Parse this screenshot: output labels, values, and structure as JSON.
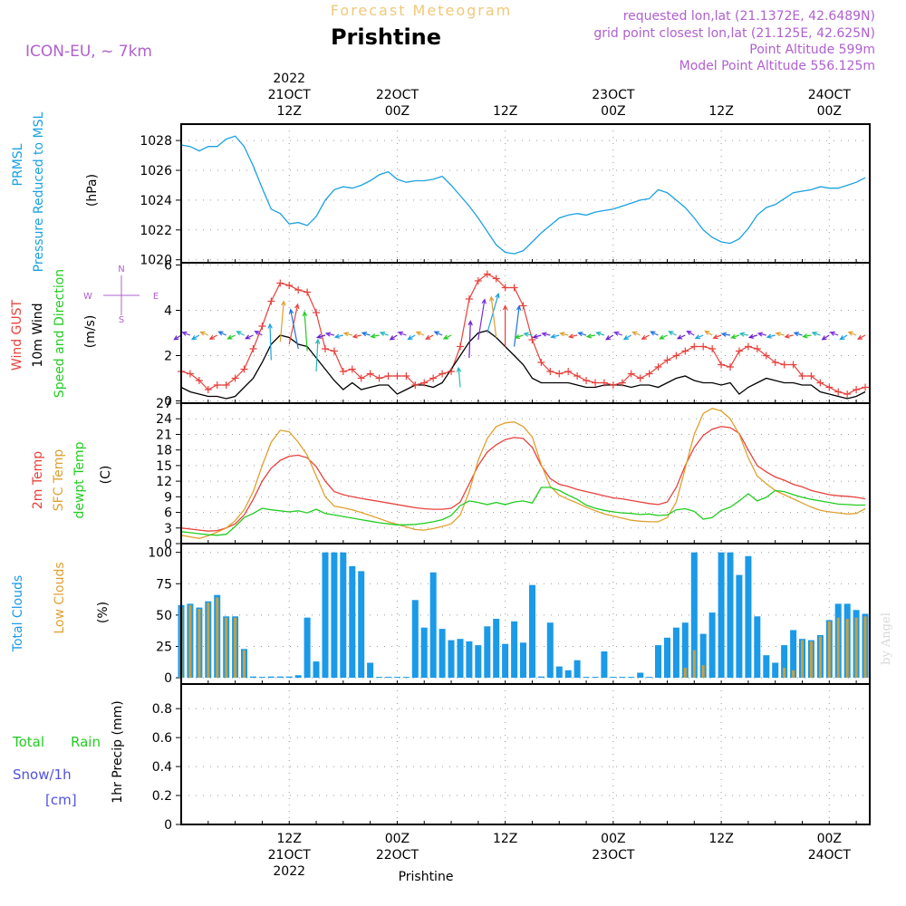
{
  "header": {
    "model": "ICON-EU, ~ 7km",
    "product": "Forecast Meteogram",
    "location": "Prishtine",
    "requested": "requested lon,lat (21.1372E, 42.6489N)",
    "grid_point": "grid point closest lon,lat (21.125E, 42.625N)",
    "point_altitude": "Point Altitude 599m",
    "model_altitude": "Model Point Altitude 556.125m",
    "footer_location": "Prishtine",
    "watermark": "by Angel"
  },
  "time_axis": {
    "top_ticks": [
      {
        "t": 12,
        "lines": [
          "2022",
          "21OCT",
          "12Z"
        ]
      },
      {
        "t": 24,
        "lines": [
          "22OCT",
          "00Z"
        ]
      },
      {
        "t": 36,
        "lines": [
          "12Z"
        ]
      },
      {
        "t": 48,
        "lines": [
          "23OCT",
          "00Z"
        ]
      },
      {
        "t": 60,
        "lines": [
          "12Z"
        ]
      },
      {
        "t": 72,
        "lines": [
          "24OCT",
          "00Z"
        ]
      }
    ],
    "bottom_ticks": [
      {
        "t": 12,
        "lines": [
          "12Z",
          "21OCT",
          "2022"
        ]
      },
      {
        "t": 24,
        "lines": [
          "00Z",
          "22OCT"
        ]
      },
      {
        "t": 36,
        "lines": [
          "12Z"
        ]
      },
      {
        "t": 48,
        "lines": [
          "00Z",
          "23OCT"
        ]
      },
      {
        "t": 60,
        "lines": [
          "12Z"
        ]
      },
      {
        "t": 72,
        "lines": [
          "00Z",
          "24OCT"
        ]
      }
    ],
    "range_hours": [
      0,
      76.5
    ]
  },
  "panel_labels": {
    "pressure": {
      "a": "PRMSL",
      "b": "Pressure Reduced to MSL",
      "unit": "(hPa)"
    },
    "wind": {
      "a": "Wind GUST",
      "b": "10m Wind",
      "c": "Speed and Direction",
      "unit": "(m/s)",
      "compass_n": "N",
      "compass_s": "S",
      "compass_w": "W",
      "compass_e": "E"
    },
    "temp": {
      "a": "2m Temp",
      "b": "SFC Temp",
      "c": "dewpt Temp",
      "unit": "(C)"
    },
    "clouds": {
      "a": "Total Clouds",
      "b": "Low Clouds",
      "unit": "(%)"
    },
    "precip": {
      "a": "Total",
      "a2": "Rain",
      "b": "Snow/1h",
      "c": "[cm]",
      "unit": "1hr Precip (mm)"
    }
  },
  "colors": {
    "pressure": "#1ba1e2",
    "gust": "#e8413c",
    "wind": "#000000",
    "temp2m": "#e8413c",
    "sfc": "#e0a030",
    "dewpt": "#22cc22",
    "total_cloud": "#1a9ae8",
    "low_cloud": "#c8a040",
    "label_purple": "#b060d0",
    "label_blue": "#5050e0"
  },
  "chart_data": [
    {
      "type": "line",
      "name": "pressure",
      "ylabel": "Pressure Reduced to MSL (hPa)",
      "yticks": [
        1020,
        1022,
        1024,
        1026,
        1028
      ],
      "ylim": [
        1019.8,
        1029.1
      ],
      "x": [
        0,
        1,
        2,
        3,
        4,
        5,
        6,
        7,
        8,
        9,
        10,
        11,
        12,
        13,
        14,
        15,
        16,
        17,
        18,
        19,
        20,
        21,
        22,
        23,
        24,
        25,
        26,
        27,
        28,
        29,
        30,
        31,
        32,
        33,
        34,
        35,
        36,
        37,
        38,
        39,
        40,
        41,
        42,
        43,
        44,
        45,
        46,
        47,
        48,
        49,
        50,
        51,
        52,
        53,
        54,
        55,
        56,
        57,
        58,
        59,
        60,
        61,
        62,
        63,
        64,
        65,
        66,
        67,
        68,
        69,
        70,
        71,
        72,
        73,
        74,
        75,
        76
      ],
      "y": [
        1027.7,
        1027.6,
        1027.3,
        1027.6,
        1027.6,
        1028.1,
        1028.3,
        1027.6,
        1026.3,
        1024.8,
        1023.4,
        1023.1,
        1022.4,
        1022.5,
        1022.3,
        1022.9,
        1024.0,
        1024.7,
        1024.9,
        1024.8,
        1025.0,
        1025.3,
        1025.7,
        1025.9,
        1025.4,
        1025.2,
        1025.3,
        1025.3,
        1025.4,
        1025.6,
        1025.0,
        1024.3,
        1023.6,
        1022.8,
        1021.9,
        1021.0,
        1020.5,
        1020.4,
        1020.6,
        1021.2,
        1021.8,
        1022.3,
        1022.8,
        1023.0,
        1023.1,
        1023.0,
        1023.2,
        1023.3,
        1023.4,
        1023.6,
        1023.8,
        1024.0,
        1024.1,
        1024.7,
        1024.5,
        1024.0,
        1023.5,
        1022.8,
        1022.0,
        1021.5,
        1021.2,
        1021.1,
        1021.4,
        1022.1,
        1023.0,
        1023.5,
        1023.7,
        1024.1,
        1024.5,
        1024.6,
        1024.7,
        1024.9,
        1024.8,
        1024.8,
        1025.0,
        1025.2,
        1025.5
      ]
    },
    {
      "type": "line",
      "name": "wind",
      "ylabel": "(m/s)",
      "yticks": [
        0,
        2,
        4,
        6
      ],
      "ylim": [
        -0.1,
        6.1
      ],
      "x": [
        0,
        1,
        2,
        3,
        4,
        5,
        6,
        7,
        8,
        9,
        10,
        11,
        12,
        13,
        14,
        15,
        16,
        17,
        18,
        19,
        20,
        21,
        22,
        23,
        24,
        25,
        26,
        27,
        28,
        29,
        30,
        31,
        32,
        33,
        34,
        35,
        36,
        37,
        38,
        39,
        40,
        41,
        42,
        43,
        44,
        45,
        46,
        47,
        48,
        49,
        50,
        51,
        52,
        53,
        54,
        55,
        56,
        57,
        58,
        59,
        60,
        61,
        62,
        63,
        64,
        65,
        66,
        67,
        68,
        69,
        70,
        71,
        72,
        73,
        74,
        75,
        76
      ],
      "series": [
        {
          "name": "Wind GUST",
          "values": [
            1.3,
            1.2,
            0.9,
            0.5,
            0.7,
            0.7,
            1.0,
            1.4,
            2.3,
            3.3,
            4.4,
            5.2,
            5.1,
            4.9,
            4.8,
            3.9,
            2.3,
            2.2,
            1.3,
            1.4,
            1.0,
            1.2,
            1.0,
            1.1,
            1.1,
            1.1,
            0.7,
            0.8,
            1.0,
            1.2,
            1.3,
            2.4,
            4.5,
            5.3,
            5.6,
            5.4,
            5.0,
            5.0,
            4.2,
            2.7,
            1.7,
            1.3,
            1.2,
            1.3,
            1.1,
            0.9,
            0.8,
            0.8,
            0.7,
            0.8,
            1.2,
            1.0,
            1.2,
            1.5,
            1.8,
            2.0,
            2.2,
            2.4,
            2.4,
            2.3,
            1.6,
            1.5,
            2.2,
            2.4,
            2.3,
            2.0,
            1.7,
            1.6,
            1.6,
            1.1,
            1.1,
            0.8,
            0.6,
            0.4,
            0.3,
            0.5,
            0.6
          ]
        },
        {
          "name": "10m Wind",
          "values": [
            0.6,
            0.4,
            0.3,
            0.2,
            0.2,
            0.1,
            0.2,
            0.6,
            1.0,
            1.7,
            2.5,
            2.9,
            2.8,
            2.5,
            2.4,
            1.9,
            1.4,
            0.9,
            0.5,
            0.8,
            0.5,
            0.6,
            0.7,
            0.7,
            0.3,
            0.5,
            0.7,
            0.7,
            0.6,
            0.8,
            1.4,
            2.0,
            2.6,
            3.0,
            3.1,
            2.8,
            2.4,
            2.0,
            1.6,
            1.0,
            0.8,
            0.8,
            0.8,
            0.8,
            0.7,
            0.6,
            0.6,
            0.7,
            0.7,
            0.7,
            0.6,
            0.7,
            0.7,
            0.6,
            0.8,
            1.0,
            1.1,
            0.9,
            0.8,
            0.8,
            0.7,
            0.8,
            0.3,
            0.6,
            0.8,
            1.0,
            0.9,
            0.8,
            0.8,
            0.7,
            0.7,
            0.4,
            0.3,
            0.2,
            0.1,
            0.2,
            0.4
          ]
        }
      ],
      "arrow_colors": [
        "#6a1fd0",
        "#7a30e0",
        "#1ba1e2",
        "#e0a030",
        "#e8413c",
        "#2070e0",
        "#22cc22",
        "#28b8b8"
      ]
    },
    {
      "type": "line",
      "name": "temperature",
      "ylabel": "(C)",
      "yticks": [
        0,
        3,
        6,
        9,
        12,
        15,
        18,
        21,
        24,
        27
      ],
      "ylim": [
        0,
        27
      ],
      "x": [
        0,
        1,
        2,
        3,
        4,
        5,
        6,
        7,
        8,
        9,
        10,
        11,
        12,
        13,
        14,
        15,
        16,
        17,
        18,
        19,
        20,
        21,
        22,
        23,
        24,
        25,
        26,
        27,
        28,
        29,
        30,
        31,
        32,
        33,
        34,
        35,
        36,
        37,
        38,
        39,
        40,
        41,
        42,
        43,
        44,
        45,
        46,
        47,
        48,
        49,
        50,
        51,
        52,
        53,
        54,
        55,
        56,
        57,
        58,
        59,
        60,
        61,
        62,
        63,
        64,
        65,
        66,
        67,
        68,
        69,
        70,
        71,
        72,
        73,
        74,
        75,
        76
      ],
      "series": [
        {
          "name": "2m Temp",
          "values": [
            3.0,
            2.8,
            2.6,
            2.4,
            2.5,
            3.0,
            3.8,
            5.5,
            8.5,
            12.0,
            14.5,
            16.0,
            16.8,
            17.0,
            16.5,
            14.8,
            12.0,
            10.0,
            9.4,
            9.0,
            8.7,
            8.4,
            8.1,
            7.8,
            7.5,
            7.2,
            6.9,
            6.7,
            6.6,
            6.6,
            6.8,
            8.0,
            11.5,
            15.0,
            17.6,
            19.0,
            20.0,
            20.4,
            20.2,
            18.5,
            15.0,
            12.5,
            11.4,
            11.0,
            10.4,
            10.0,
            9.6,
            9.2,
            8.8,
            8.6,
            8.3,
            8.0,
            7.7,
            7.5,
            8.0,
            10.8,
            15.0,
            18.5,
            20.8,
            22.0,
            22.5,
            22.3,
            21.2,
            18.0,
            15.0,
            13.8,
            12.8,
            12.2,
            11.4,
            10.9,
            10.2,
            9.8,
            9.4,
            9.2,
            9.1,
            8.9,
            8.6
          ]
        },
        {
          "name": "SFC Temp",
          "values": [
            1.6,
            1.3,
            1.0,
            1.5,
            2.2,
            3.0,
            4.4,
            6.5,
            10.0,
            15.0,
            19.5,
            21.8,
            21.5,
            19.5,
            17.0,
            13.0,
            9.0,
            7.2,
            6.9,
            6.5,
            6.0,
            5.4,
            4.8,
            4.2,
            3.7,
            3.2,
            2.7,
            2.6,
            2.9,
            3.3,
            3.8,
            5.5,
            10.0,
            16.0,
            20.2,
            22.5,
            23.2,
            23.4,
            22.5,
            20.5,
            15.2,
            11.0,
            9.3,
            8.5,
            7.8,
            7.0,
            6.3,
            5.7,
            5.3,
            4.9,
            4.5,
            4.3,
            4.2,
            4.2,
            5.0,
            8.0,
            14.5,
            21.0,
            25.0,
            26.0,
            25.5,
            24.0,
            21.0,
            16.5,
            13.0,
            11.5,
            10.2,
            9.4,
            8.6,
            7.8,
            7.0,
            6.4,
            6.1,
            5.9,
            5.7,
            5.8,
            6.7
          ]
        },
        {
          "name": "dewpt Temp",
          "values": [
            2.3,
            2.1,
            1.9,
            1.7,
            1.6,
            1.8,
            3.3,
            5.0,
            5.8,
            6.8,
            6.5,
            6.3,
            6.1,
            6.3,
            5.9,
            6.6,
            5.8,
            5.5,
            5.2,
            4.9,
            4.6,
            4.3,
            4.0,
            3.8,
            3.6,
            3.6,
            3.7,
            3.9,
            4.2,
            4.6,
            5.4,
            7.3,
            8.2,
            7.9,
            7.5,
            7.9,
            7.5,
            8.0,
            8.2,
            7.8,
            10.8,
            10.8,
            10.2,
            9.3,
            8.5,
            7.4,
            6.8,
            6.4,
            6.1,
            5.9,
            5.8,
            5.6,
            5.7,
            5.4,
            5.5,
            6.5,
            6.7,
            6.2,
            4.7,
            5.0,
            6.4,
            7.0,
            8.2,
            9.6,
            8.2,
            8.9,
            10.2,
            10.0,
            9.4,
            8.9,
            8.5,
            8.2,
            7.9,
            7.6,
            7.5,
            7.4,
            7.4
          ]
        }
      ]
    },
    {
      "type": "bar",
      "name": "clouds",
      "ylabel": "(%)",
      "yticks": [
        0,
        25,
        50,
        75,
        100
      ],
      "ylim": [
        -5,
        107
      ],
      "x": [
        0,
        1,
        2,
        3,
        4,
        5,
        6,
        7,
        8,
        9,
        10,
        11,
        12,
        13,
        14,
        15,
        16,
        17,
        18,
        19,
        20,
        21,
        22,
        23,
        24,
        25,
        26,
        27,
        28,
        29,
        30,
        31,
        32,
        33,
        34,
        35,
        36,
        37,
        38,
        39,
        40,
        41,
        42,
        43,
        44,
        45,
        46,
        47,
        48,
        49,
        50,
        51,
        52,
        53,
        54,
        55,
        56,
        57,
        58,
        59,
        60,
        61,
        62,
        63,
        64,
        65,
        66,
        67,
        68,
        69,
        70,
        71,
        72,
        73,
        74,
        75,
        76
      ],
      "series": [
        {
          "name": "Total Clouds",
          "values": [
            58,
            59,
            56,
            61,
            66,
            49,
            49,
            23,
            1,
            0,
            1,
            1,
            1,
            2,
            48,
            13,
            100,
            100,
            100,
            89,
            85,
            12,
            0,
            0,
            0,
            0,
            62,
            40,
            84,
            39,
            30,
            31,
            29,
            26,
            41,
            47,
            27,
            45,
            28,
            74,
            1,
            44,
            9,
            6,
            14,
            0,
            0,
            21,
            0,
            0,
            0,
            4,
            0,
            26,
            32,
            40,
            44,
            100,
            35,
            52,
            100,
            100,
            82,
            97,
            49,
            18,
            12,
            26,
            38,
            31,
            30,
            34,
            46,
            59,
            59,
            54,
            51
          ]
        },
        {
          "name": "Low Clouds",
          "values": [
            56,
            58,
            55,
            60,
            64,
            48,
            48,
            22,
            0,
            0,
            0,
            0,
            0,
            0,
            0,
            0,
            0,
            0,
            0,
            0,
            0,
            0,
            0,
            0,
            0,
            0,
            0,
            0,
            0,
            0,
            0,
            0,
            0,
            0,
            0,
            0,
            0,
            0,
            0,
            0,
            0,
            0,
            0,
            0,
            0,
            0,
            0,
            0,
            0,
            0,
            0,
            0,
            0,
            0,
            0,
            0,
            8,
            22,
            10,
            0,
            0,
            0,
            0,
            0,
            0,
            0,
            0,
            8,
            6,
            30,
            29,
            33,
            45,
            48,
            47,
            48,
            49
          ]
        }
      ]
    },
    {
      "type": "bar",
      "name": "precipitation",
      "ylabel": "1hr Precip (mm)",
      "yticks": [
        0,
        0.2,
        0.4,
        0.6,
        0.8
      ],
      "ylim": [
        0,
        0.97
      ],
      "series": [
        {
          "name": "Total Rain",
          "values": []
        },
        {
          "name": "Snow/1h [cm]",
          "values": []
        }
      ]
    }
  ]
}
